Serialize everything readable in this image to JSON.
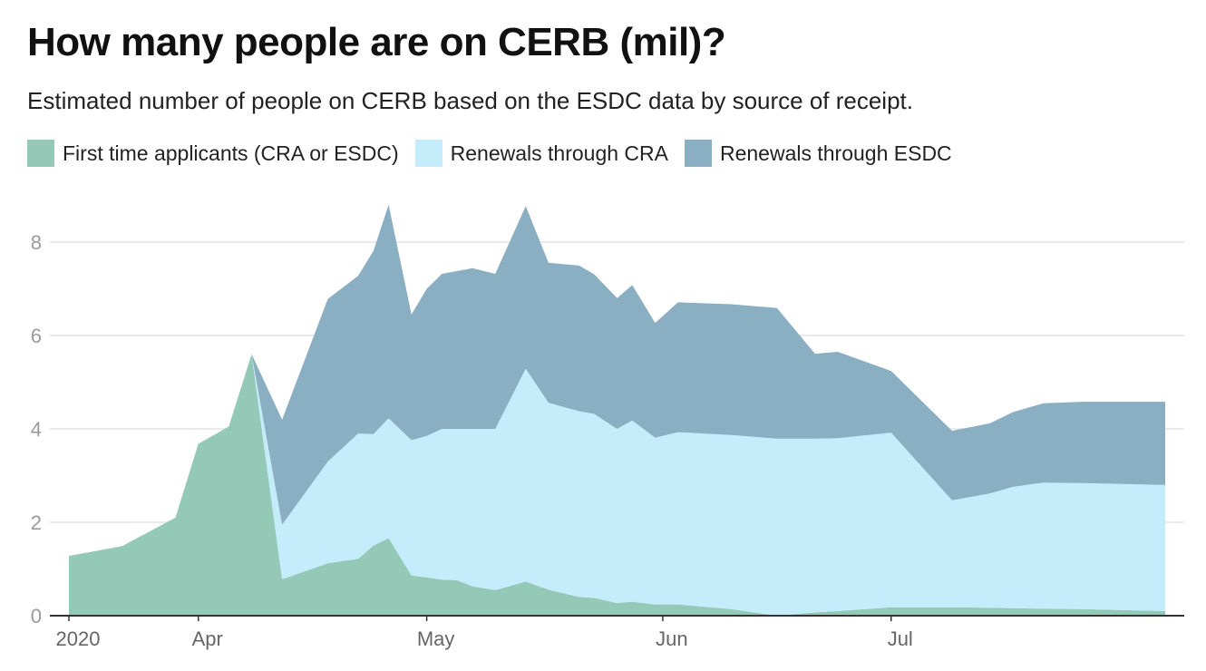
{
  "chart_data": {
    "type": "area",
    "stacked": true,
    "title": "How many people are on CERB (mil)?",
    "subtitle": "Estimated number of people on CERB based on the ESDC data by source of receipt.",
    "xlabel": "",
    "ylabel": "",
    "x": [
      "2020-03-15",
      "2020-03-22",
      "2020-03-29",
      "2020-04-01",
      "2020-04-05",
      "2020-04-08",
      "2020-04-12",
      "2020-04-18",
      "2020-04-22",
      "2020-04-24",
      "2020-04-26",
      "2020-04-29",
      "2020-05-01",
      "2020-05-03",
      "2020-05-05",
      "2020-05-07",
      "2020-05-10",
      "2020-05-14",
      "2020-05-17",
      "2020-05-21",
      "2020-05-23",
      "2020-05-26",
      "2020-05-28",
      "2020-05-31",
      "2020-06-03",
      "2020-06-10",
      "2020-06-16",
      "2020-06-21",
      "2020-06-24",
      "2020-07-01",
      "2020-07-09",
      "2020-07-14",
      "2020-07-17",
      "2020-07-21",
      "2020-07-26",
      "2020-08-06"
    ],
    "series": [
      {
        "name": "First time applicants (CRA or ESDC)",
        "color": "#94c9b8",
        "values": [
          1.28,
          1.49,
          2.1,
          3.68,
          4.05,
          5.6,
          0.78,
          1.12,
          1.22,
          1.5,
          1.66,
          0.86,
          0.82,
          0.77,
          0.76,
          0.63,
          0.55,
          0.73,
          0.56,
          0.4,
          0.38,
          0.27,
          0.3,
          0.24,
          0.24,
          0.14,
          0.0,
          0.07,
          0.1,
          0.18,
          0.18,
          0.17,
          0.16,
          0.15,
          0.14,
          0.1
        ]
      },
      {
        "name": "Renewals through CRA",
        "color": "#c5ecfa",
        "values": [
          0,
          0,
          0,
          0,
          0,
          0,
          1.17,
          2.18,
          2.68,
          2.39,
          2.57,
          2.9,
          3.03,
          3.23,
          3.24,
          3.37,
          3.45,
          4.56,
          4.0,
          3.98,
          3.94,
          3.73,
          3.88,
          3.57,
          3.69,
          3.73,
          3.79,
          3.72,
          3.7,
          3.74,
          2.29,
          2.45,
          2.6,
          2.7,
          2.7,
          2.7
        ]
      },
      {
        "name": "Renewals through ESDC",
        "color": "#8aafc2",
        "values": [
          0,
          0,
          0,
          0,
          0,
          0,
          2.25,
          3.48,
          3.38,
          3.92,
          4.57,
          2.69,
          3.15,
          3.32,
          3.38,
          3.44,
          3.32,
          3.48,
          3.0,
          3.12,
          2.99,
          2.8,
          2.9,
          2.46,
          2.78,
          2.8,
          2.8,
          1.82,
          1.85,
          1.32,
          1.49,
          1.5,
          1.6,
          1.7,
          1.74,
          1.78
        ]
      }
    ],
    "ylim": [
      0,
      9
    ],
    "yticks": [
      0,
      2,
      4,
      6,
      8
    ],
    "xticks": [
      {
        "label": "2020",
        "date": "2020-03-15"
      },
      {
        "label": "Apr",
        "date": "2020-04-01"
      },
      {
        "label": "May",
        "date": "2020-05-01"
      },
      {
        "label": "Jun",
        "date": "2020-06-01"
      },
      {
        "label": "Jul",
        "date": "2020-07-01"
      }
    ],
    "grid": true,
    "legend": "top-left"
  }
}
